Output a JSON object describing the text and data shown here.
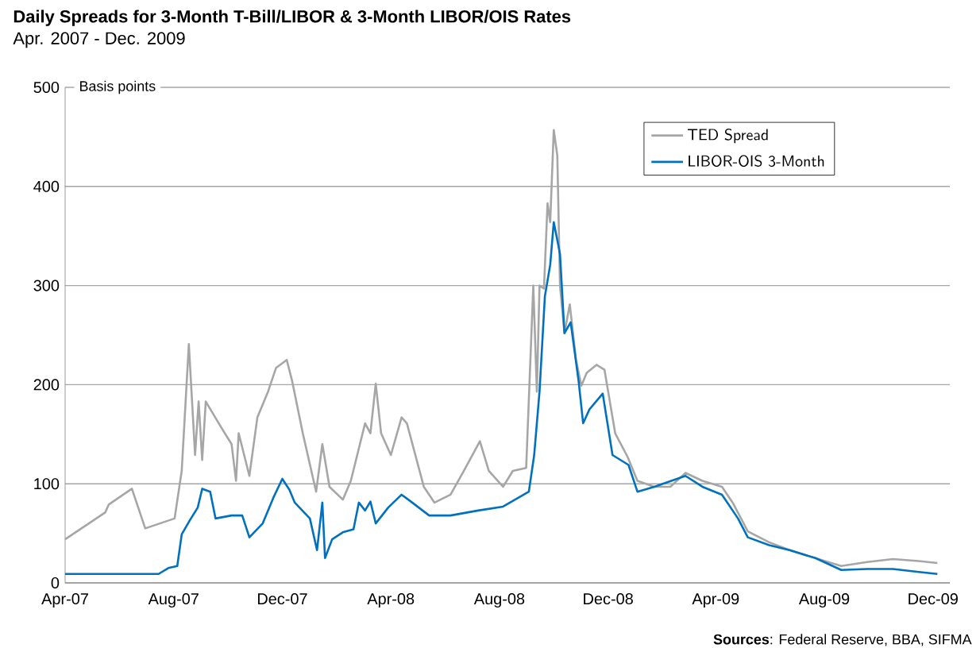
{
  "chart_data": {
    "type": "line",
    "title": "Daily Spreads for 3-Month T-Bill/LIBOR & 3-Month LIBOR/OIS Rates",
    "subtitle": "Apr. 2007 - Dec. 2009",
    "ylabel": "Basis points",
    "annotations": [
      "**Sources**: Federal Reserve, BBA, SIFMA"
    ],
    "xlim": [
      "2007-04-01",
      "2009-12-20"
    ],
    "xticks": [
      {
        "value": "2007-04-01",
        "label": "Apr-07"
      },
      {
        "value": "2007-08-01",
        "label": "Aug-07"
      },
      {
        "value": "2007-12-01",
        "label": "Dec-07"
      },
      {
        "value": "2008-04-01",
        "label": "Apr-08"
      },
      {
        "value": "2008-08-01",
        "label": "Aug-08"
      },
      {
        "value": "2008-12-01",
        "label": "Dec-08"
      },
      {
        "value": "2009-04-01",
        "label": "Apr-09"
      },
      {
        "value": "2009-08-01",
        "label": "Aug-09"
      },
      {
        "value": "2009-12-01",
        "label": "Dec-09"
      }
    ],
    "ylim": [
      0,
      500
    ],
    "yticks": [
      0,
      100,
      200,
      300,
      400,
      500
    ],
    "grid": "y",
    "legend": "top right",
    "marker": "none",
    "line_style": "solid",
    "series": [
      {
        "name": "TED Spread",
        "color": "#a6a6a6",
        "x": [
          "2007-04-01",
          "2007-05-16",
          "2007-05-20",
          "2007-06-15",
          "2007-06-30",
          "2007-08-02",
          "2007-08-10",
          "2007-08-18",
          "2007-08-25",
          "2007-08-29",
          "2007-09-02",
          "2007-09-06",
          "2007-09-24",
          "2007-10-05",
          "2007-10-10",
          "2007-10-13",
          "2007-10-25",
          "2007-11-03",
          "2007-11-15",
          "2007-11-24",
          "2007-12-06",
          "2007-12-12",
          "2007-12-24",
          "2008-01-08",
          "2008-01-15",
          "2008-01-23",
          "2008-02-07",
          "2008-02-16",
          "2008-03-03",
          "2008-03-09",
          "2008-03-15",
          "2008-03-21",
          "2008-04-01",
          "2008-04-13",
          "2008-04-19",
          "2008-05-08",
          "2008-05-20",
          "2008-06-07",
          "2008-06-22",
          "2008-07-10",
          "2008-07-20",
          "2008-08-05",
          "2008-08-16",
          "2008-08-31",
          "2008-09-08",
          "2008-09-12",
          "2008-09-15",
          "2008-09-20",
          "2008-09-24",
          "2008-09-27",
          "2008-10-01",
          "2008-10-05",
          "2008-10-08",
          "2008-10-13",
          "2008-10-19",
          "2008-10-26",
          "2008-11-01",
          "2008-11-07",
          "2008-11-18",
          "2008-11-27",
          "2008-12-03",
          "2008-12-09",
          "2008-12-23",
          "2009-01-03",
          "2009-01-22",
          "2009-02-09",
          "2009-02-26",
          "2009-03-17",
          "2009-04-08",
          "2009-04-20",
          "2009-05-07",
          "2009-05-31",
          "2009-06-23",
          "2009-07-22",
          "2009-08-20",
          "2009-09-18",
          "2009-10-17",
          "2009-11-15",
          "2009-12-06"
        ],
        "values": [
          44,
          71,
          79,
          95,
          55,
          65,
          113,
          241,
          129,
          183,
          124,
          183,
          156,
          140,
          103,
          151,
          108,
          167,
          193,
          217,
          225,
          204,
          151,
          92,
          140,
          97,
          84,
          103,
          161,
          151,
          201,
          151,
          129,
          167,
          161,
          97,
          81,
          89,
          113,
          143,
          113,
          97,
          113,
          116,
          300,
          193,
          300,
          297,
          383,
          364,
          457,
          431,
          300,
          252,
          281,
          225,
          199,
          212,
          220,
          215,
          183,
          151,
          127,
          103,
          97,
          97,
          111,
          103,
          97,
          81,
          52,
          41,
          33,
          25,
          17,
          21,
          24,
          22,
          20
        ]
      },
      {
        "name": "LIBOR-OIS 3-Month",
        "color": "#0070c0",
        "x": [
          "2007-04-01",
          "2007-07-15",
          "2007-07-26",
          "2007-08-05",
          "2007-08-10",
          "2007-08-19",
          "2007-08-28",
          "2007-09-02",
          "2007-09-11",
          "2007-09-17",
          "2007-10-05",
          "2007-10-17",
          "2007-10-25",
          "2007-11-09",
          "2007-11-21",
          "2007-12-01",
          "2007-12-09",
          "2007-12-15",
          "2008-01-01",
          "2008-01-09",
          "2008-01-15",
          "2008-01-18",
          "2008-01-26",
          "2008-02-07",
          "2008-02-19",
          "2008-02-25",
          "2008-03-03",
          "2008-03-09",
          "2008-03-15",
          "2008-03-29",
          "2008-04-13",
          "2008-04-25",
          "2008-05-14",
          "2008-06-07",
          "2008-07-08",
          "2008-08-05",
          "2008-09-03",
          "2008-09-09",
          "2008-09-15",
          "2008-09-21",
          "2008-09-27",
          "2008-10-01",
          "2008-10-08",
          "2008-10-13",
          "2008-10-20",
          "2008-10-29",
          "2008-11-03",
          "2008-11-10",
          "2008-11-25",
          "2008-12-06",
          "2008-12-24",
          "2009-01-03",
          "2009-01-22",
          "2009-02-26",
          "2009-03-17",
          "2009-04-08",
          "2009-04-26",
          "2009-05-07",
          "2009-05-31",
          "2009-06-23",
          "2009-07-22",
          "2009-08-20",
          "2009-09-18",
          "2009-10-17",
          "2009-11-15",
          "2009-12-06"
        ],
        "values": [
          9,
          9,
          15,
          17,
          49,
          63,
          76,
          95,
          92,
          65,
          68,
          68,
          46,
          60,
          86,
          105,
          94,
          81,
          65,
          33,
          81,
          25,
          44,
          51,
          54,
          81,
          73,
          82,
          60,
          76,
          89,
          81,
          68,
          68,
          73,
          77,
          92,
          129,
          193,
          289,
          321,
          364,
          332,
          252,
          263,
          203,
          161,
          175,
          191,
          129,
          119,
          92,
          97,
          108,
          97,
          89,
          65,
          46,
          38,
          33,
          25,
          13,
          14,
          14,
          11,
          9
        ]
      }
    ]
  }
}
